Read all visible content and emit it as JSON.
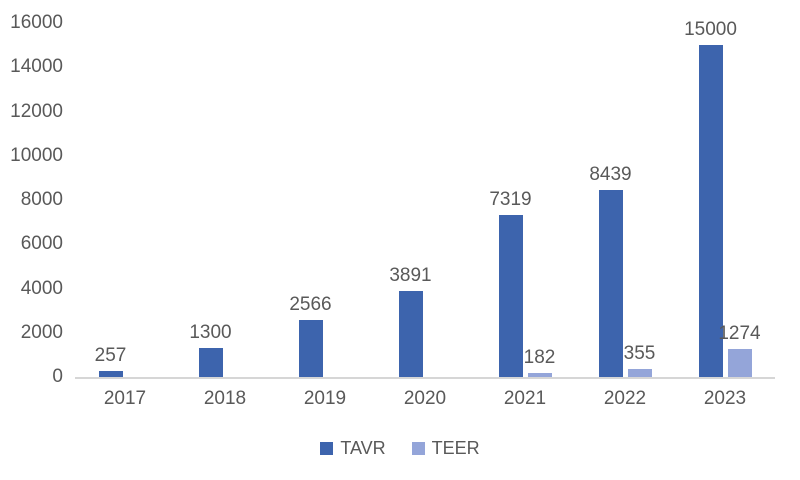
{
  "chart_data": {
    "type": "bar",
    "title": "",
    "xlabel": "",
    "ylabel": "",
    "categories": [
      "2017",
      "2018",
      "2019",
      "2020",
      "2021",
      "2022",
      "2023"
    ],
    "series": [
      {
        "name": "TAVR",
        "color": "#3d64ad",
        "values": [
          257,
          1300,
          2566,
          3891,
          7319,
          8439,
          15000
        ]
      },
      {
        "name": "TEER",
        "color": "#94a5d9",
        "values": [
          null,
          null,
          null,
          null,
          182,
          355,
          1274
        ]
      }
    ],
    "ylim": [
      0,
      16000
    ],
    "yticks": [
      0,
      2000,
      4000,
      6000,
      8000,
      10000,
      12000,
      14000,
      16000
    ],
    "grid": false,
    "data_labels": true,
    "legend_position": "bottom",
    "colors": {
      "axis_line": "#d6d6d6",
      "text": "#595959",
      "background": "#ffffff"
    }
  }
}
